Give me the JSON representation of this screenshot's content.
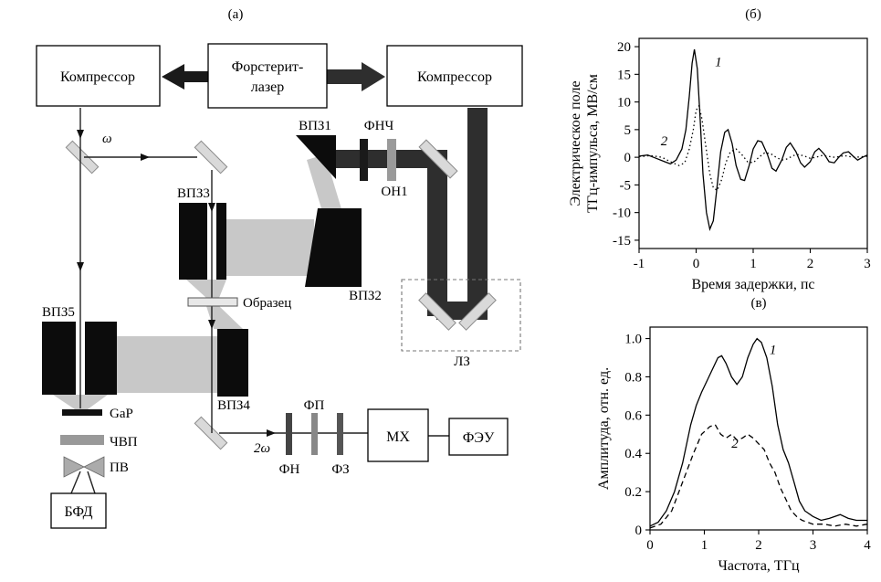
{
  "figure": {
    "panel_a_label": "(а)"
  },
  "colors": {
    "curve": "#000000",
    "beam_gray": "#c8c8c8",
    "beam_dark": "#2e2e2e"
  },
  "diagram": {
    "labels": {
      "compressor_left": "Компрессор",
      "laser_line1": "Форстерит-",
      "laser_line2": "лазер",
      "compressor_right": "Компрессор",
      "omega": "ω",
      "two_omega": "2ω",
      "vp1": "ВПЗ1",
      "vp2": "ВПЗ2",
      "vp3": "ВПЗ3",
      "vp4": "ВПЗ4",
      "vp5": "ВПЗ5",
      "fnch": "ФНЧ",
      "on1": "ОН1",
      "sample": "Образец",
      "lz": "ЛЗ",
      "gap": "GaP",
      "chvp": "ЧВП",
      "pv": "ПВ",
      "bfd": "БФД",
      "fn": "ФН",
      "fp": "ФП",
      "fz": "ФЗ",
      "mx": "МХ",
      "feu": "ФЭУ"
    }
  },
  "chart_data": [
    {
      "type": "line",
      "title": "(б)",
      "xlabel": "Время задержки, пс",
      "ylabel_lines": [
        "Электрическое поле",
        "ТГц-импульса, МВ/см"
      ],
      "xlim": [
        -1,
        3
      ],
      "ylim": [
        -16.5,
        21.5
      ],
      "xticks": [
        [
          -1,
          "-1"
        ],
        [
          0,
          "0"
        ],
        [
          1,
          "1"
        ],
        [
          2,
          "2"
        ],
        [
          3,
          "3"
        ]
      ],
      "yticks": [
        [
          -15,
          "-15"
        ],
        [
          -10,
          "-10"
        ],
        [
          -5,
          "-5"
        ],
        [
          0,
          "0"
        ],
        [
          5,
          "5"
        ],
        [
          10,
          "10"
        ],
        [
          15,
          "15"
        ],
        [
          20,
          "20"
        ]
      ],
      "series": [
        {
          "name": "1",
          "style": "solid",
          "label_at": [
            0.33,
            16.5
          ],
          "points": [
            [
              -1.0,
              0.2
            ],
            [
              -0.85,
              0.4
            ],
            [
              -0.7,
              -0.2
            ],
            [
              -0.55,
              -0.8
            ],
            [
              -0.45,
              -1.2
            ],
            [
              -0.35,
              -0.5
            ],
            [
              -0.25,
              1.5
            ],
            [
              -0.18,
              5
            ],
            [
              -0.12,
              11
            ],
            [
              -0.07,
              17
            ],
            [
              -0.03,
              19.5
            ],
            [
              0.02,
              16
            ],
            [
              0.07,
              7
            ],
            [
              0.12,
              -3
            ],
            [
              0.18,
              -10
            ],
            [
              0.24,
              -13
            ],
            [
              0.3,
              -11.5
            ],
            [
              0.36,
              -6
            ],
            [
              0.43,
              1
            ],
            [
              0.5,
              4.5
            ],
            [
              0.56,
              5
            ],
            [
              0.63,
              2.5
            ],
            [
              0.7,
              -1.5
            ],
            [
              0.78,
              -4
            ],
            [
              0.85,
              -4.2
            ],
            [
              0.93,
              -1.5
            ],
            [
              1.0,
              1.5
            ],
            [
              1.08,
              3
            ],
            [
              1.15,
              2.8
            ],
            [
              1.25,
              0.5
            ],
            [
              1.33,
              -2
            ],
            [
              1.4,
              -2.5
            ],
            [
              1.5,
              -0.5
            ],
            [
              1.58,
              1.8
            ],
            [
              1.65,
              2.6
            ],
            [
              1.75,
              1
            ],
            [
              1.83,
              -1
            ],
            [
              1.9,
              -1.8
            ],
            [
              2.0,
              -0.8
            ],
            [
              2.08,
              1
            ],
            [
              2.15,
              1.6
            ],
            [
              2.25,
              0.5
            ],
            [
              2.33,
              -0.8
            ],
            [
              2.42,
              -1
            ],
            [
              2.5,
              0
            ],
            [
              2.58,
              0.8
            ],
            [
              2.67,
              1
            ],
            [
              2.75,
              0.2
            ],
            [
              2.83,
              -0.5
            ],
            [
              2.92,
              0
            ],
            [
              3.0,
              0.4
            ]
          ]
        },
        {
          "name": "2",
          "style": "dotted",
          "label_at": [
            -0.62,
            2.2
          ],
          "points": [
            [
              -1.0,
              0.1
            ],
            [
              -0.8,
              0.3
            ],
            [
              -0.6,
              0
            ],
            [
              -0.45,
              -0.8
            ],
            [
              -0.3,
              -1.5
            ],
            [
              -0.2,
              -1
            ],
            [
              -0.12,
              1.5
            ],
            [
              -0.05,
              5
            ],
            [
              0.0,
              8.5
            ],
            [
              0.05,
              9.3
            ],
            [
              0.1,
              7
            ],
            [
              0.17,
              2
            ],
            [
              0.24,
              -3
            ],
            [
              0.3,
              -5.5
            ],
            [
              0.37,
              -6
            ],
            [
              0.45,
              -4
            ],
            [
              0.52,
              -1
            ],
            [
              0.6,
              1
            ],
            [
              0.7,
              1.5
            ],
            [
              0.8,
              0.5
            ],
            [
              0.9,
              -0.8
            ],
            [
              1.0,
              -1
            ],
            [
              1.1,
              0
            ],
            [
              1.2,
              0.8
            ],
            [
              1.3,
              0.7
            ],
            [
              1.4,
              0
            ],
            [
              1.5,
              -0.5
            ],
            [
              1.6,
              -0.3
            ],
            [
              1.7,
              0.3
            ],
            [
              1.8,
              0.5
            ],
            [
              1.9,
              0.2
            ],
            [
              2.0,
              -0.2
            ],
            [
              2.1,
              0
            ],
            [
              2.2,
              0.3
            ],
            [
              2.3,
              0.2
            ],
            [
              2.4,
              0
            ],
            [
              2.5,
              0.1
            ],
            [
              2.6,
              0.3
            ],
            [
              2.7,
              0.1
            ],
            [
              2.8,
              0
            ],
            [
              2.9,
              0.1
            ],
            [
              3.0,
              0.2
            ]
          ]
        }
      ]
    },
    {
      "type": "line",
      "title": "(в)",
      "xlabel": "Частота, ТГц",
      "ylabel_lines": [
        "Амплитуда, отн. ед."
      ],
      "xlim": [
        0,
        4
      ],
      "ylim": [
        0,
        1.06
      ],
      "xticks": [
        [
          0,
          "0"
        ],
        [
          1,
          "1"
        ],
        [
          2,
          "2"
        ],
        [
          3,
          "3"
        ],
        [
          4,
          "4"
        ]
      ],
      "yticks": [
        [
          0,
          "0"
        ],
        [
          0.2,
          "0.2"
        ],
        [
          0.4,
          "0.4"
        ],
        [
          0.6,
          "0.6"
        ],
        [
          0.8,
          "0.8"
        ],
        [
          1,
          "1.0"
        ]
      ],
      "series": [
        {
          "name": "1",
          "style": "solid",
          "label_at": [
            2.2,
            0.92
          ],
          "points": [
            [
              0,
              0.02
            ],
            [
              0.15,
              0.04
            ],
            [
              0.3,
              0.1
            ],
            [
              0.45,
              0.2
            ],
            [
              0.6,
              0.35
            ],
            [
              0.75,
              0.55
            ],
            [
              0.85,
              0.65
            ],
            [
              0.95,
              0.72
            ],
            [
              1.05,
              0.78
            ],
            [
              1.15,
              0.84
            ],
            [
              1.25,
              0.9
            ],
            [
              1.32,
              0.91
            ],
            [
              1.4,
              0.87
            ],
            [
              1.5,
              0.8
            ],
            [
              1.6,
              0.76
            ],
            [
              1.7,
              0.8
            ],
            [
              1.8,
              0.9
            ],
            [
              1.9,
              0.97
            ],
            [
              1.97,
              1.0
            ],
            [
              2.05,
              0.98
            ],
            [
              2.15,
              0.9
            ],
            [
              2.25,
              0.75
            ],
            [
              2.35,
              0.55
            ],
            [
              2.45,
              0.42
            ],
            [
              2.55,
              0.35
            ],
            [
              2.65,
              0.25
            ],
            [
              2.75,
              0.15
            ],
            [
              2.85,
              0.1
            ],
            [
              3.0,
              0.07
            ],
            [
              3.15,
              0.05
            ],
            [
              3.3,
              0.06
            ],
            [
              3.5,
              0.08
            ],
            [
              3.65,
              0.06
            ],
            [
              3.8,
              0.05
            ],
            [
              4.0,
              0.05
            ]
          ]
        },
        {
          "name": "2",
          "style": "dashed",
          "label_at": [
            1.5,
            0.43
          ],
          "points": [
            [
              0,
              0.01
            ],
            [
              0.2,
              0.03
            ],
            [
              0.4,
              0.1
            ],
            [
              0.6,
              0.25
            ],
            [
              0.8,
              0.4
            ],
            [
              0.95,
              0.5
            ],
            [
              1.1,
              0.54
            ],
            [
              1.2,
              0.55
            ],
            [
              1.3,
              0.5
            ],
            [
              1.4,
              0.48
            ],
            [
              1.5,
              0.5
            ],
            [
              1.6,
              0.47
            ],
            [
              1.7,
              0.48
            ],
            [
              1.8,
              0.5
            ],
            [
              1.9,
              0.48
            ],
            [
              2.0,
              0.45
            ],
            [
              2.1,
              0.42
            ],
            [
              2.2,
              0.35
            ],
            [
              2.3,
              0.3
            ],
            [
              2.4,
              0.22
            ],
            [
              2.5,
              0.16
            ],
            [
              2.6,
              0.1
            ],
            [
              2.7,
              0.07
            ],
            [
              2.8,
              0.05
            ],
            [
              3.0,
              0.03
            ],
            [
              3.2,
              0.03
            ],
            [
              3.4,
              0.02
            ],
            [
              3.6,
              0.03
            ],
            [
              3.8,
              0.02
            ],
            [
              4.0,
              0.03
            ]
          ]
        }
      ]
    }
  ]
}
